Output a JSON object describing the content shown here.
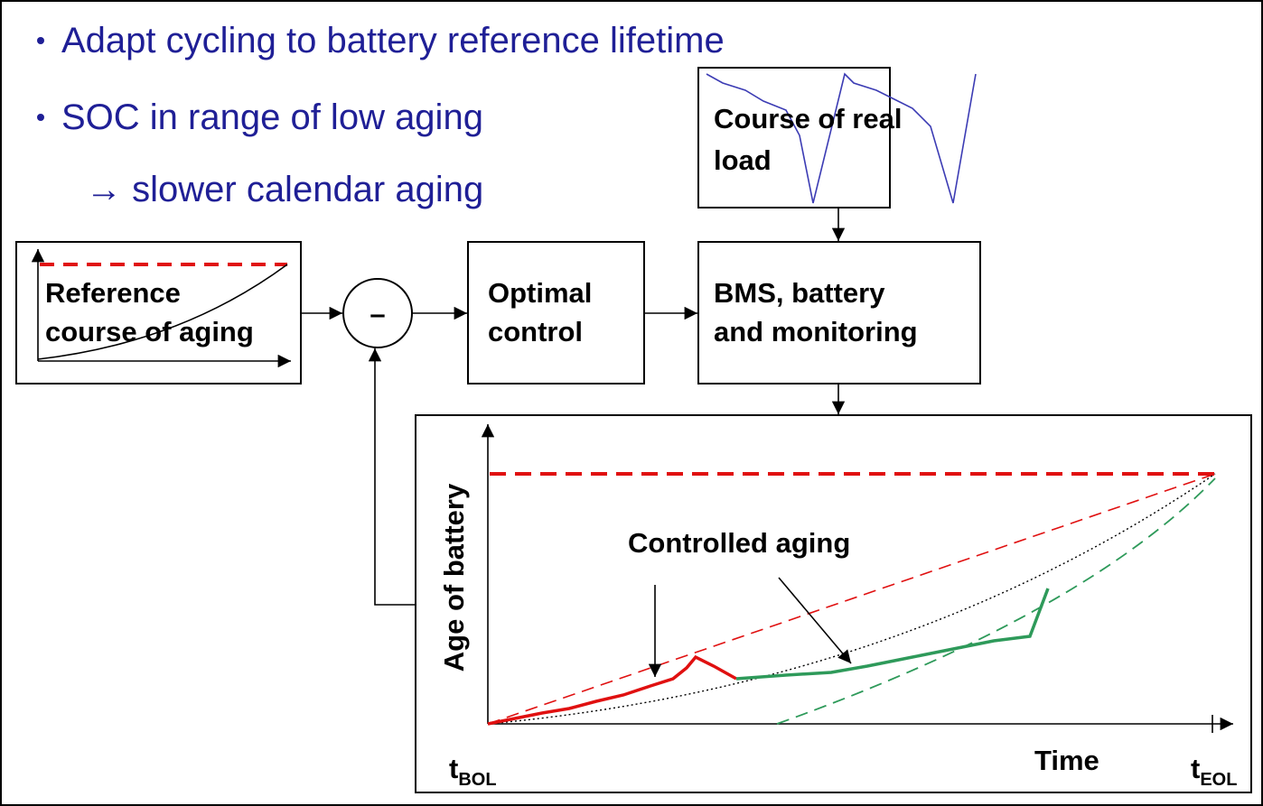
{
  "bullets": [
    "Adapt cycling to battery reference lifetime",
    "SOC in range of low aging",
    "→ slower calendar aging"
  ],
  "nodes": {
    "load": {
      "lines": [
        "Course of real",
        "load"
      ]
    },
    "reference": {
      "lines": [
        "Reference",
        "course of aging"
      ]
    },
    "summing": {
      "label": "–"
    },
    "optimal": {
      "lines": [
        "Optimal",
        "control"
      ]
    },
    "bms": {
      "lines": [
        "BMS, battery",
        "and monitoring"
      ]
    }
  },
  "plot": {
    "y_label": "Age of battery",
    "x_label": "Time",
    "annotation": "Controlled aging",
    "t_bol": {
      "main": "t",
      "sub": "BOL"
    },
    "t_eol": {
      "main": "t",
      "sub": "EOL"
    }
  }
}
